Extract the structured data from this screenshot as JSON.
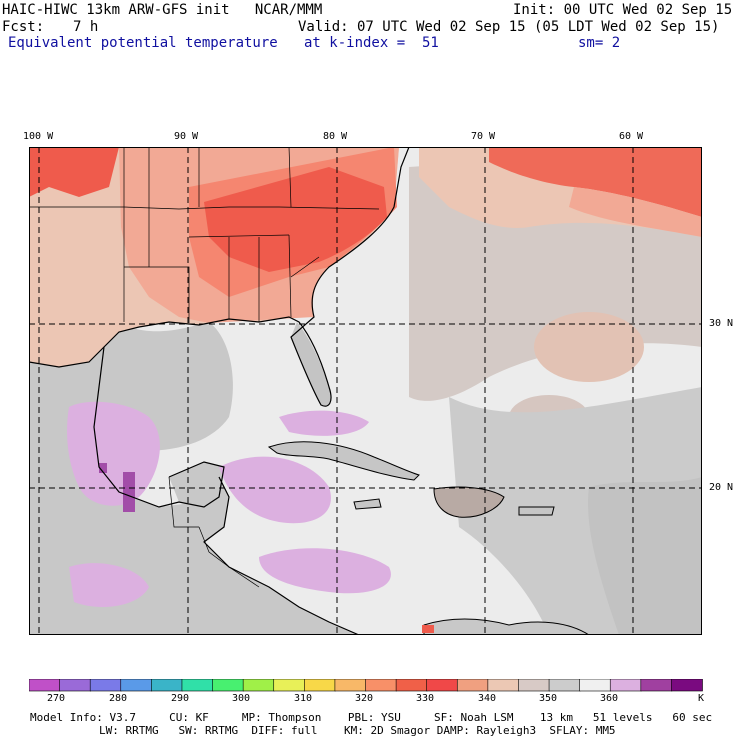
{
  "header": {
    "model_line": "HAIC-HIWC 13km ARW-GFS init   NCAR/MMM",
    "init_line": "Init: 00 UTC Wed 02 Sep 15",
    "fcst_label": "Fcst:",
    "fcst_value": "7 h",
    "valid_line": "Valid: 07 UTC Wed 02 Sep 15 (05 LDT Wed 02 Sep 15)",
    "field_name": "Equivalent potential temperature",
    "level_text": "at k-index =  51",
    "smooth_text": "sm= 2"
  },
  "map": {
    "lon_labels": [
      "100 W",
      "90 W",
      "80 W",
      "70 W",
      "60 W"
    ],
    "lat_labels": [
      "30 N",
      "20 N"
    ],
    "colors": {
      "ocean_light": "#ececec",
      "ocean_gray": "#c8c8c8",
      "warm_tan": "#ecc6b4",
      "peach": "#f2a995",
      "salmon": "#f58670",
      "red": "#ef5b4c",
      "lilac": "#dcb0e0",
      "purple": "#a24da8",
      "outline": "#000000"
    }
  },
  "colorbar": {
    "colors": [
      "#c050c8",
      "#9a6ad8",
      "#7a7ae8",
      "#5a9ae8",
      "#3ab4c8",
      "#30e0a8",
      "#48f070",
      "#a0f048",
      "#e8f058",
      "#f8d848",
      "#f8b868",
      "#f89068",
      "#f06048",
      "#f04848",
      "#f0a080",
      "#ecc8b4",
      "#d8cac6",
      "#cccccc",
      "#f0f0f0",
      "#dcb0e0",
      "#a040a0",
      "#7a0a80"
    ],
    "ticks": [
      "270",
      "280",
      "290",
      "300",
      "310",
      "320",
      "330",
      "340",
      "350",
      "360"
    ],
    "unit": "K"
  },
  "footer": {
    "line1": "Model Info: V3.7     CU: KF     MP: Thompson    PBL: YSU     SF: Noah LSM    13 km   51 levels   60 sec",
    "line2": "LW: RRTMG   SW: RRTMG  DIFF: full    KM: 2D Smagor DAMP: Rayleigh3  SFLAY: MM5"
  }
}
